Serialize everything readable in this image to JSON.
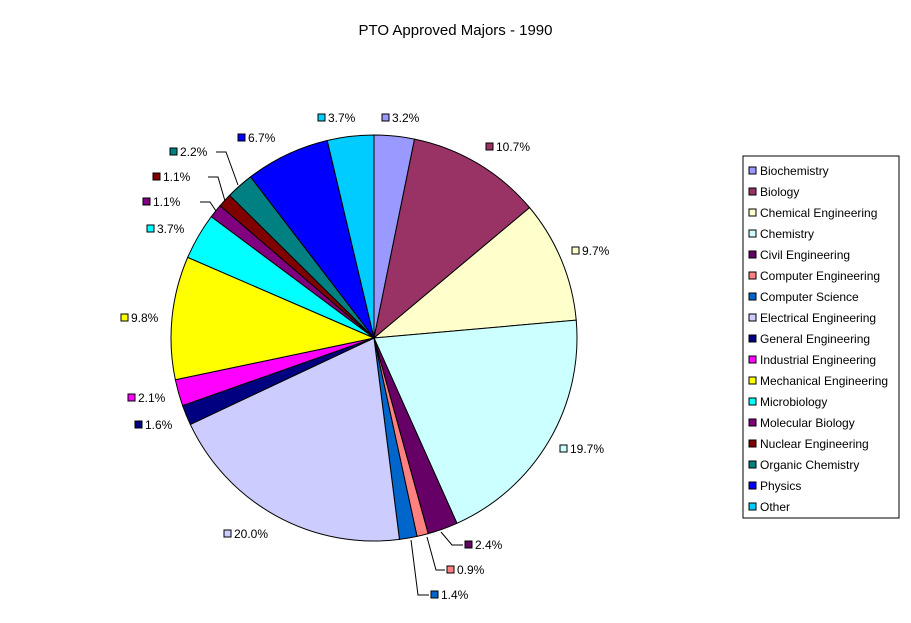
{
  "chart_data": {
    "type": "pie",
    "title": "PTO Approved Majors - 1990",
    "slices": [
      {
        "name": "Biochemistry",
        "value": 3.2,
        "label": "3.2%",
        "color": "#9999FF"
      },
      {
        "name": "Biology",
        "value": 10.7,
        "label": "10.7%",
        "color": "#993366"
      },
      {
        "name": "Chemical Engineering",
        "value": 9.7,
        "label": "9.7%",
        "color": "#FFFFCC"
      },
      {
        "name": "Chemistry",
        "value": 19.7,
        "label": "19.7%",
        "color": "#CCFFFF"
      },
      {
        "name": "Civil Engineering",
        "value": 2.4,
        "label": "2.4%",
        "color": "#660066"
      },
      {
        "name": "Computer Engineering",
        "value": 0.9,
        "label": "0.9%",
        "color": "#FF8080"
      },
      {
        "name": "Computer Science",
        "value": 1.4,
        "label": "1.4%",
        "color": "#0066CC"
      },
      {
        "name": "Electrical Engineering",
        "value": 20.0,
        "label": "20.0%",
        "color": "#CCCCFF"
      },
      {
        "name": "General Engineering",
        "value": 1.6,
        "label": "1.6%",
        "color": "#000080"
      },
      {
        "name": "Industrial Engineering",
        "value": 2.1,
        "label": "2.1%",
        "color": "#FF00FF"
      },
      {
        "name": "Mechanical Engineering",
        "value": 9.8,
        "label": "9.8%",
        "color": "#FFFF00"
      },
      {
        "name": "Microbiology",
        "value": 3.7,
        "label": "3.7%",
        "color": "#00FFFF"
      },
      {
        "name": "Molecular Biology",
        "value": 1.1,
        "label": "1.1%",
        "color": "#800080"
      },
      {
        "name": "Nuclear Engineering",
        "value": 1.1,
        "label": "1.1%",
        "color": "#800000"
      },
      {
        "name": "Organic Chemistry",
        "value": 2.2,
        "label": "2.2%",
        "color": "#008080"
      },
      {
        "name": "Physics",
        "value": 6.7,
        "label": "6.7%",
        "color": "#0000FF"
      },
      {
        "name": "Other",
        "value": 3.7,
        "label": "3.7%",
        "color": "#00CCFF"
      }
    ],
    "legend_position": "right"
  }
}
